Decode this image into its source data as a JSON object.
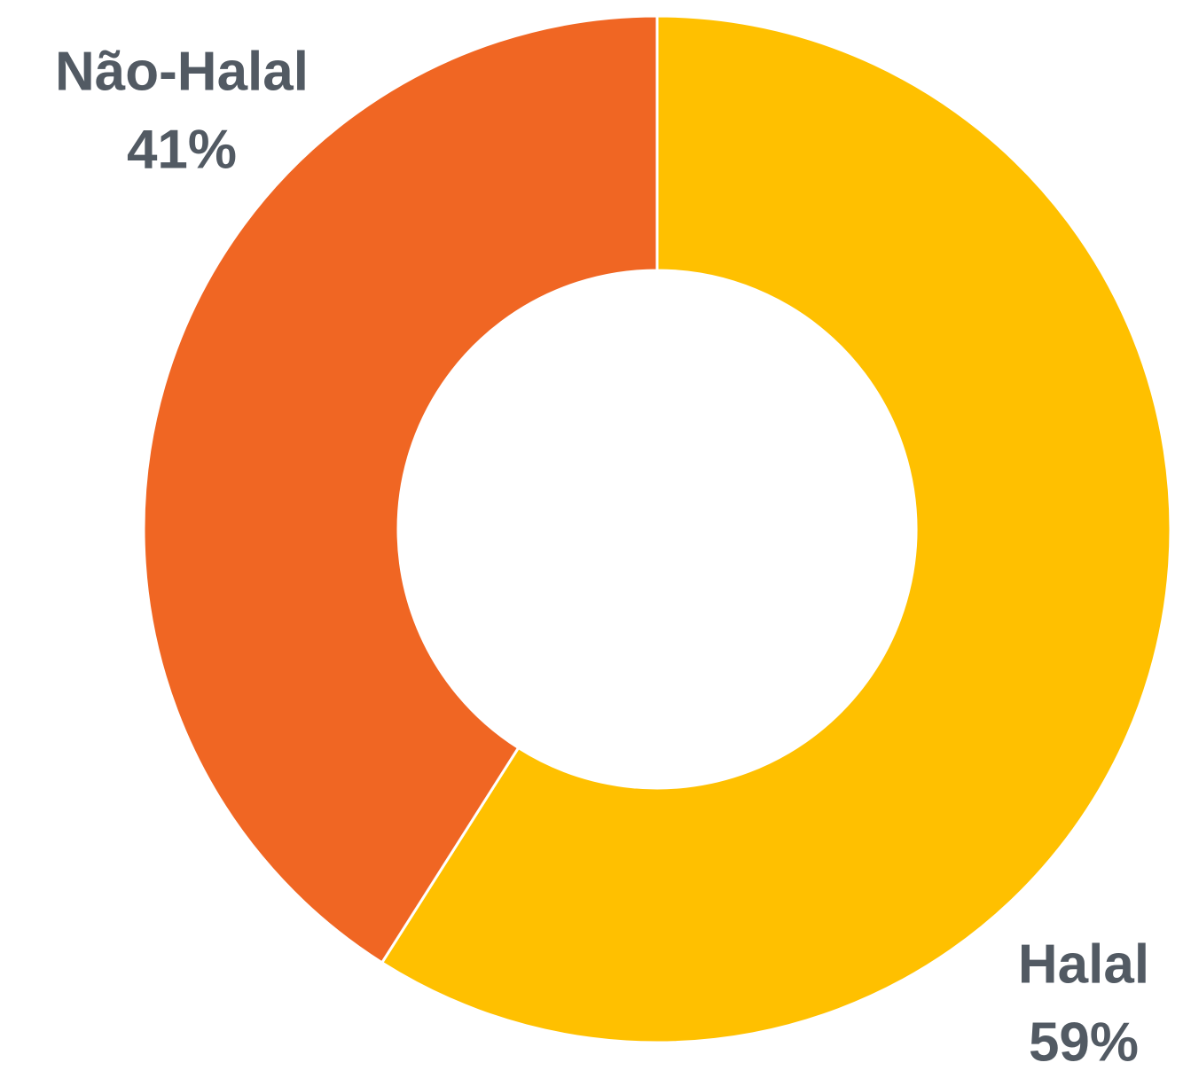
{
  "chart_data": {
    "type": "donut",
    "categories": [
      "Halal",
      "Não-Halal"
    ],
    "values": [
      59,
      41
    ],
    "value_labels": [
      "59%",
      "41%"
    ],
    "colors": [
      "#FFC000",
      "#F06623"
    ]
  }
}
